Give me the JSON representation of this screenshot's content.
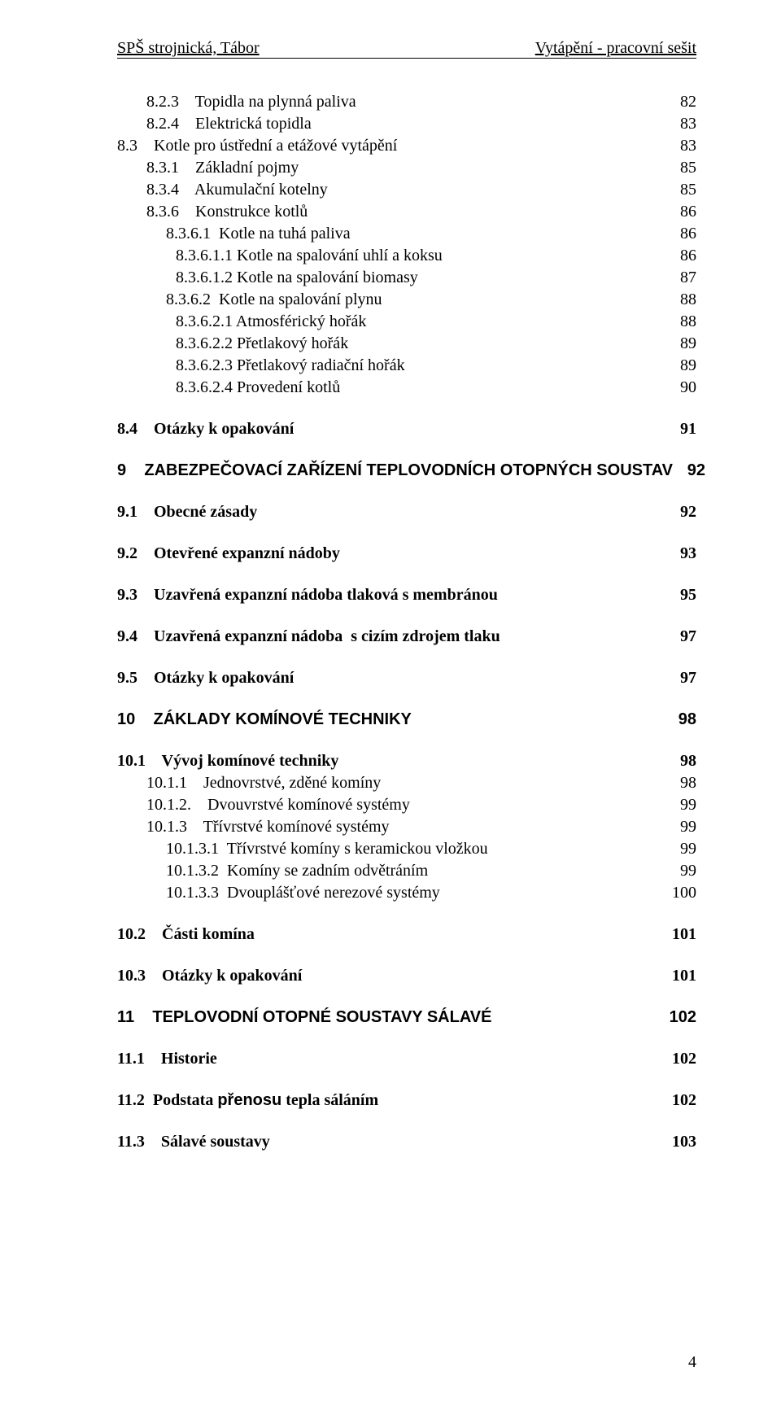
{
  "header": {
    "left": "SPŠ strojnická, Tábor",
    "right": "Vytápění -  pracovní sešit"
  },
  "page_number": "4",
  "toc": [
    {
      "num": "8.2.3",
      "title": "Topidla na plynná paliva",
      "page": "82",
      "indent": 1,
      "bold": false,
      "arial": false
    },
    {
      "num": "8.2.4",
      "title": "Elektrická topidla",
      "page": "83",
      "indent": 1,
      "bold": false,
      "arial": false
    },
    {
      "num": "8.3",
      "title": "Kotle pro ústřední a etážové vytápění",
      "page": "83",
      "indent": 0,
      "bold": false,
      "arial": false
    },
    {
      "num": "8.3.1",
      "title": "Základní pojmy",
      "page": "85",
      "indent": 1,
      "bold": false,
      "arial": false
    },
    {
      "num": "8.3.4",
      "title": "Akumulační kotelny",
      "page": "85",
      "indent": 1,
      "bold": false,
      "arial": false
    },
    {
      "num": "8.3.6",
      "title": "Konstrukce kotlů",
      "page": "86",
      "indent": 1,
      "bold": false,
      "arial": false
    },
    {
      "num": "8.3.6.1",
      "title": "Kotle na tuhá paliva",
      "page": "86",
      "indent": 2,
      "bold": false,
      "arial": false
    },
    {
      "num": "8.3.6.1.1",
      "title": "Kotle na spalování uhlí a koksu",
      "page": "86",
      "indent": 3,
      "bold": false,
      "arial": false
    },
    {
      "num": "8.3.6.1.2",
      "title": "Kotle na spalování biomasy",
      "page": "87",
      "indent": 3,
      "bold": false,
      "arial": false
    },
    {
      "num": "8.3.6.2",
      "title": "Kotle na spalování plynu",
      "page": "88",
      "indent": 2,
      "bold": false,
      "arial": false
    },
    {
      "num": "8.3.6.2.1",
      "title": "Atmosférický hořák",
      "page": "88",
      "indent": 3,
      "bold": false,
      "arial": false
    },
    {
      "num": "8.3.6.2.2",
      "title": "Přetlakový hořák",
      "page": "89",
      "indent": 3,
      "bold": false,
      "arial": false
    },
    {
      "num": "8.3.6.2.3",
      "title": "Přetlakový radiační hořák",
      "page": "89",
      "indent": 3,
      "bold": false,
      "arial": false
    },
    {
      "num": "8.3.6.2.4",
      "title": "Provedení kotlů",
      "page": "90",
      "indent": 3,
      "bold": false,
      "arial": false
    },
    {
      "gap": true
    },
    {
      "num": "8.4",
      "title": "Otázky k opakování",
      "page": "91",
      "indent": 0,
      "bold": true,
      "arial": false
    },
    {
      "gap": true
    },
    {
      "num": "9",
      "title": "ZABEZPEČOVACÍ ZAŘÍZENÍ TEPLOVODNÍCH OTOPNÝCH SOUSTAV",
      "page": "92",
      "indent": 0,
      "bold": true,
      "arial": true
    },
    {
      "gap": true
    },
    {
      "num": "9.1",
      "title": "Obecné zásady",
      "page": "92",
      "indent": 0,
      "bold": true,
      "arial": false
    },
    {
      "gap": true
    },
    {
      "num": "9.2",
      "title": "Otevřené expanzní nádoby",
      "page": "93",
      "indent": 0,
      "bold": true,
      "arial": false
    },
    {
      "gap": true
    },
    {
      "num": "9.3",
      "title": "Uzavřená expanzní nádoba tlaková s membránou",
      "page": "95",
      "indent": 0,
      "bold": true,
      "arial": false
    },
    {
      "gap": true
    },
    {
      "num": "9.4",
      "title": "Uzavřená expanzní nádoba  s cizím zdrojem tlaku",
      "page": "97",
      "indent": 0,
      "bold": true,
      "arial": false
    },
    {
      "gap": true
    },
    {
      "num": "9.5",
      "title": "Otázky k opakování",
      "page": "97",
      "indent": 0,
      "bold": true,
      "arial": false
    },
    {
      "gap": true
    },
    {
      "num": "10",
      "title": "ZÁKLADY KOMÍNOVÉ TECHNIKY",
      "page": "98",
      "indent": 0,
      "bold": true,
      "arial": true
    },
    {
      "gap": true
    },
    {
      "num": "10.1",
      "title": "Vývoj komínové techniky",
      "page": "98",
      "indent": 0,
      "bold": true,
      "arial": false
    },
    {
      "num": "10.1.1",
      "title": "Jednovrstvé, zděné komíny",
      "page": "98",
      "indent": 1,
      "bold": false,
      "arial": false
    },
    {
      "num": "10.1.2.",
      "title": "Dvouvrstvé komínové systémy",
      "page": "99",
      "indent": 1,
      "bold": false,
      "arial": false
    },
    {
      "num": "10.1.3",
      "title": "Třívrstvé komínové systémy",
      "page": "99",
      "indent": 1,
      "bold": false,
      "arial": false
    },
    {
      "num": "10.1.3.1",
      "title": "Třívrstvé komíny s keramickou vložkou",
      "page": "99",
      "indent": 2,
      "bold": false,
      "arial": false
    },
    {
      "num": "10.1.3.2",
      "title": "Komíny se zadním odvětráním",
      "page": "99",
      "indent": 2,
      "bold": false,
      "arial": false
    },
    {
      "num": "10.1.3.3",
      "title": "Dvouplášťové nerezové systémy",
      "page": "100",
      "indent": 2,
      "bold": false,
      "arial": false
    },
    {
      "gap": true
    },
    {
      "num": "10.2",
      "title": "Části komína",
      "page": "101",
      "indent": 0,
      "bold": true,
      "arial": false
    },
    {
      "gap": true
    },
    {
      "num": "10.3",
      "title": "Otázky k opakování",
      "page": "101",
      "indent": 0,
      "bold": true,
      "arial": false
    },
    {
      "gap": true
    },
    {
      "num": "11",
      "title": "TEPLOVODNÍ OTOPNÉ SOUSTAVY SÁLAVÉ",
      "page": "102",
      "indent": 0,
      "bold": true,
      "arial": true
    },
    {
      "gap": true
    },
    {
      "num": "11.1",
      "title": "Historie",
      "page": "102",
      "indent": 0,
      "bold": true,
      "arial": false
    },
    {
      "gap": true
    },
    {
      "num": "11.2",
      "title": "Podstata přenosu tepla sáláním",
      "page": "102",
      "indent": 0,
      "bold": true,
      "arial": false,
      "arial_word": "přenosu"
    },
    {
      "gap": true
    },
    {
      "num": "11.3",
      "title": "Sálavé soustavy",
      "page": "103",
      "indent": 0,
      "bold": true,
      "arial": false
    }
  ]
}
